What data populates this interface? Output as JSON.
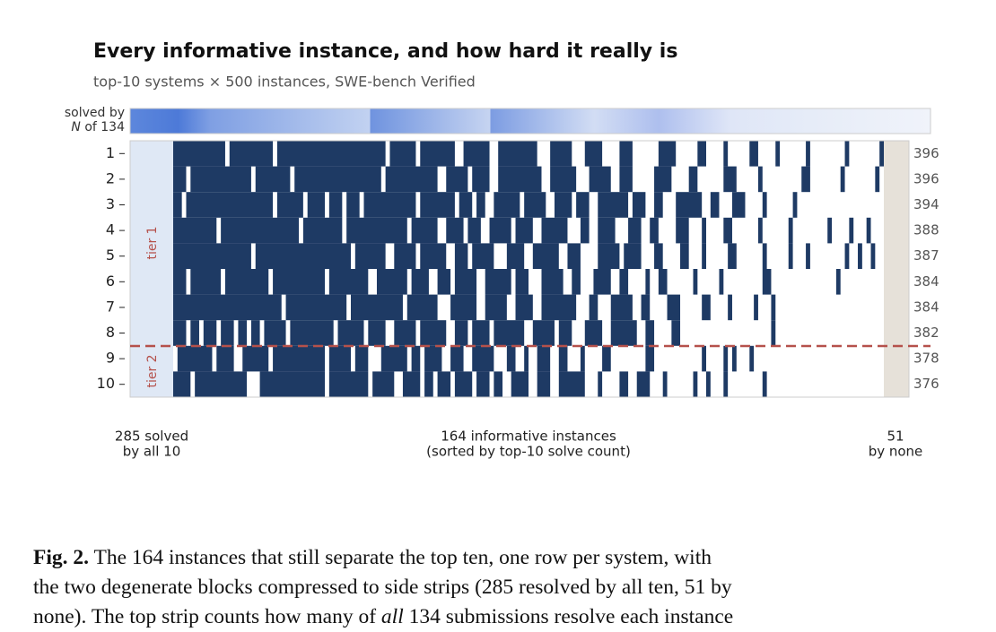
{
  "figure": {
    "title": "Every informative instance, and how hard it really is",
    "subtitle": "top-10 systems × 500 instances, SWE-bench Verified",
    "strip_label_top": "solved by",
    "strip_label_n": "N",
    "strip_label_rest": "of 134",
    "tier_labels": [
      "tier 1",
      "tier 2"
    ],
    "left_label": [
      "285 solved",
      "by all 10"
    ],
    "middle_label": [
      "164 informative instances",
      "(sorted by top-10 solve count)"
    ],
    "right_label": [
      "51",
      "by none"
    ],
    "rows": [
      {
        "label": "1",
        "solved": 396,
        "runs": [
          12,
          1,
          10,
          1,
          25,
          1,
          6,
          1,
          8,
          2,
          6,
          2,
          9,
          3,
          5,
          3,
          4,
          4,
          3,
          6,
          4,
          5,
          2,
          4,
          1,
          5,
          2,
          4,
          1,
          6,
          1,
          8,
          1,
          7,
          1
        ]
      },
      {
        "label": "2",
        "solved": 396,
        "runs": [
          3,
          1,
          14,
          1,
          8,
          1,
          20,
          1,
          12,
          2,
          5,
          1,
          4,
          2,
          10,
          2,
          6,
          3,
          5,
          2,
          3,
          5,
          4,
          4,
          2,
          6,
          3,
          5,
          1,
          9,
          2,
          7,
          1,
          7,
          1,
          1
        ]
      },
      {
        "label": "3",
        "solved": 394,
        "runs": [
          2,
          1,
          20,
          1,
          6,
          1,
          4,
          1,
          3,
          1,
          3,
          1,
          12,
          1,
          8,
          1,
          3,
          1,
          2,
          2,
          6,
          1,
          5,
          2,
          4,
          1,
          3,
          2,
          7,
          1,
          3,
          2,
          2,
          3,
          6,
          2,
          2,
          3,
          3,
          4,
          1,
          6,
          1,
          20
        ]
      },
      {
        "label": "4",
        "solved": 388,
        "runs": [
          10,
          1,
          18,
          1,
          9,
          1,
          14,
          1,
          6,
          2,
          4,
          1,
          3,
          2,
          5,
          1,
          4,
          2,
          6,
          3,
          2,
          2,
          4,
          3,
          3,
          2,
          2,
          4,
          3,
          3,
          1,
          4,
          2,
          6,
          1,
          6,
          1,
          8,
          1,
          4,
          1,
          3,
          1,
          3
        ]
      },
      {
        "label": "5",
        "solved": 387,
        "runs": [
          18,
          1,
          22,
          1,
          7,
          2,
          5,
          1,
          6,
          2,
          3,
          1,
          5,
          3,
          4,
          2,
          6,
          2,
          3,
          4,
          5,
          1,
          4,
          3,
          2,
          4,
          2,
          3,
          1,
          5,
          2,
          6,
          1,
          5,
          1,
          3,
          1,
          8,
          1,
          2,
          1,
          2,
          1,
          2
        ]
      },
      {
        "label": "6",
        "solved": 384,
        "runs": [
          3,
          1,
          7,
          1,
          10,
          1,
          12,
          1,
          9,
          2,
          7,
          1,
          4,
          2,
          3,
          1,
          5,
          2,
          6,
          1,
          3,
          3,
          5,
          2,
          2,
          3,
          4,
          2,
          2,
          4,
          1,
          2,
          2,
          6,
          1,
          5,
          1,
          9,
          2,
          15,
          1,
          10
        ]
      },
      {
        "label": "7",
        "solved": 384,
        "runs": [
          25,
          1,
          14,
          1,
          12,
          1,
          7,
          3,
          6,
          2,
          5,
          2,
          4,
          2,
          8,
          3,
          2,
          3,
          5,
          2,
          2,
          4,
          3,
          5,
          2,
          4,
          1,
          5,
          1,
          3,
          1,
          25
        ]
      },
      {
        "label": "8",
        "solved": 382,
        "runs": [
          3,
          1,
          2,
          1,
          3,
          1,
          3,
          1,
          2,
          1,
          2,
          1,
          5,
          1,
          10,
          1,
          6,
          1,
          4,
          2,
          5,
          1,
          6,
          2,
          3,
          1,
          4,
          1,
          7,
          2,
          5,
          1,
          3,
          3,
          4,
          2,
          6,
          2,
          2,
          4,
          2,
          21,
          1,
          25
        ]
      },
      {
        "label": "9",
        "solved": 378,
        "runs": [
          0,
          1,
          8,
          1,
          4,
          2,
          6,
          1,
          12,
          1,
          5,
          1,
          3,
          3,
          6,
          1,
          2,
          1,
          4,
          2,
          3,
          2,
          5,
          3,
          2,
          2,
          1,
          2,
          3,
          2,
          2,
          3,
          1,
          4,
          2,
          8,
          2,
          11,
          1,
          4,
          1,
          1,
          1,
          3,
          1,
          30
        ]
      },
      {
        "label": "10",
        "solved": 376,
        "runs": [
          4,
          1,
          12,
          3,
          15,
          1,
          9,
          1,
          5,
          2,
          4,
          1,
          2,
          1,
          3,
          1,
          4,
          1,
          3,
          1,
          2,
          2,
          4,
          2,
          3,
          2,
          6,
          3,
          1,
          4,
          2,
          2,
          3,
          3,
          1,
          6,
          1,
          2,
          1,
          3,
          1,
          8,
          1,
          27
        ]
      }
    ],
    "solved_color": "#1e3a64"
  },
  "caption": {
    "label": "Fig. 2.",
    "line1": "The 164 instances that still separate the top ten, one row per system, with",
    "line2": "the two degenerate blocks compressed to side strips (285 resolved by all ten, 51 by",
    "line3a": "none). The top strip counts how many of",
    "line3_em": "all",
    "line3b": "134 submissions resolve each instance"
  }
}
